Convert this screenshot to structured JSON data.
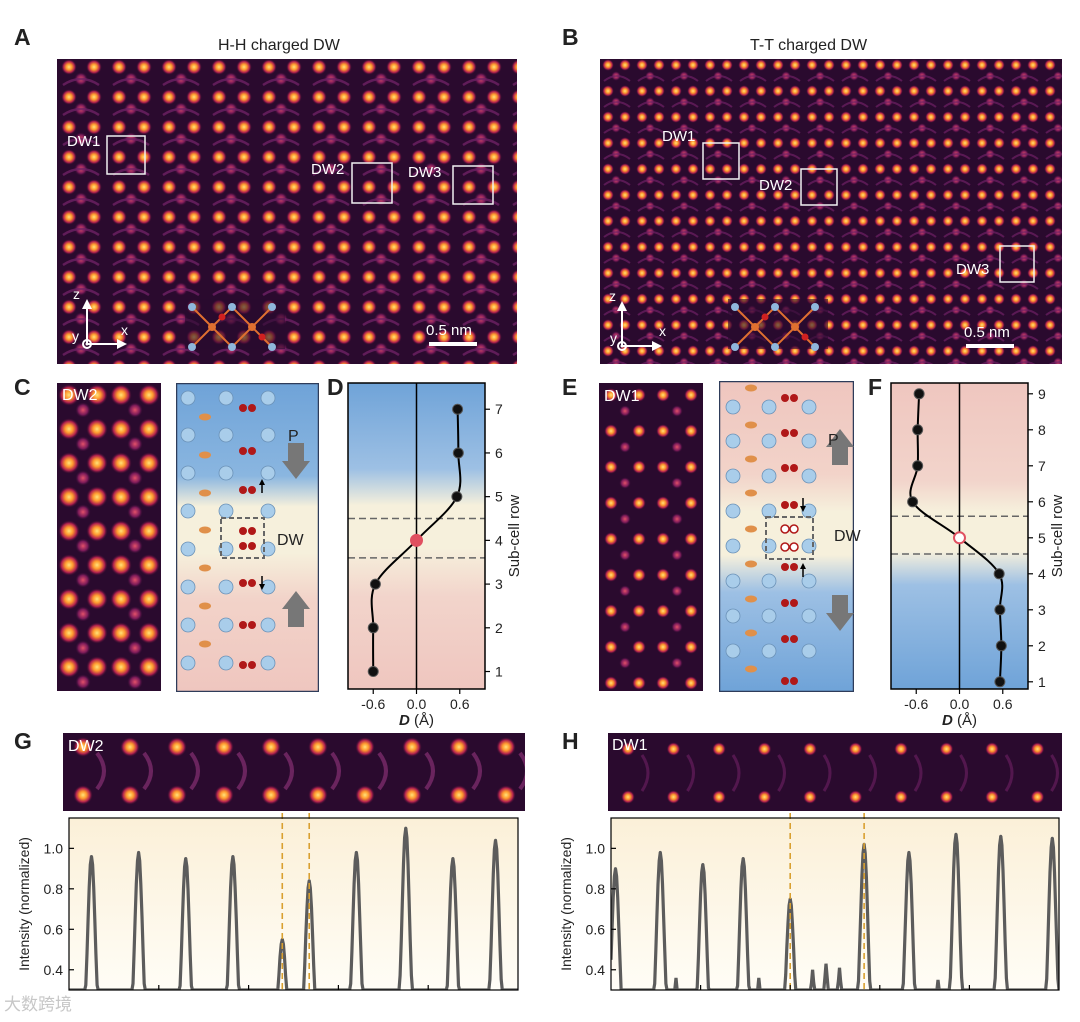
{
  "panels": {
    "A": {
      "label": "A",
      "title": "H-H charged DW",
      "dw_labels": [
        "DW1",
        "DW2",
        "DW3"
      ],
      "scale_bar": "0.5 nm"
    },
    "B": {
      "label": "B",
      "title": "T-T charged DW",
      "dw_labels": [
        "DW1",
        "DW2",
        "DW3"
      ],
      "scale_bar": "0.5 nm"
    },
    "C": {
      "label": "C",
      "image_label": "DW2",
      "p_label": "P",
      "dw_label": "DW"
    },
    "D": {
      "label": "D"
    },
    "E": {
      "label": "E",
      "image_label": "DW1",
      "p_label": "P",
      "dw_label": "DW"
    },
    "F": {
      "label": "F"
    },
    "G": {
      "label": "G",
      "image_label": "DW2"
    },
    "H": {
      "label": "H",
      "image_label": "DW1"
    }
  },
  "axes_labels": {
    "z": "z",
    "y": "y",
    "x": "x"
  },
  "watermark": "大数跨境",
  "colors": {
    "blue_region": "#6fa3d8",
    "pink_region": "#efc6bf",
    "dw_band": "#f6f0dc",
    "curve": "#000000",
    "peak": "#5c5c5c",
    "dash": "#d9a030",
    "center_marker": "#e05060",
    "stem_bg": "#2a0a2e",
    "atom_bright": "#ffb040"
  },
  "chart_data": [
    {
      "id": "D",
      "type": "line",
      "xlabel": "D (Å)",
      "ylabel": "Sub-cell row",
      "x_ticks": [
        "-0.6",
        "0.0",
        "0.6"
      ],
      "y_ticks": [
        "1",
        "2",
        "3",
        "4",
        "5",
        "6",
        "7"
      ],
      "xlim": [
        -0.95,
        0.95
      ],
      "ylim": [
        0.6,
        7.6
      ],
      "points": [
        {
          "x": -0.6,
          "y": 1
        },
        {
          "x": -0.6,
          "y": 2
        },
        {
          "x": -0.57,
          "y": 3
        },
        {
          "x": 0.0,
          "y": 4
        },
        {
          "x": 0.56,
          "y": 5
        },
        {
          "x": 0.58,
          "y": 6
        },
        {
          "x": 0.57,
          "y": 7
        }
      ],
      "center_point": {
        "x": 0.0,
        "y": 4
      },
      "dw_bounds": [
        3.6,
        4.5
      ],
      "regions": {
        "top": "blue",
        "bottom": "pink"
      }
    },
    {
      "id": "F",
      "type": "line",
      "xlabel": "D (Å)",
      "ylabel": "Sub-cell row",
      "x_ticks": [
        "-0.6",
        "0.0",
        "0.6"
      ],
      "y_ticks": [
        "1",
        "2",
        "3",
        "4",
        "5",
        "6",
        "7",
        "8",
        "9"
      ],
      "xlim": [
        -0.95,
        0.95
      ],
      "ylim": [
        0.8,
        9.3
      ],
      "points": [
        {
          "x": 0.56,
          "y": 1
        },
        {
          "x": 0.58,
          "y": 2
        },
        {
          "x": 0.56,
          "y": 3
        },
        {
          "x": 0.55,
          "y": 4
        },
        {
          "x": 0.0,
          "y": 5
        },
        {
          "x": -0.65,
          "y": 6
        },
        {
          "x": -0.58,
          "y": 7
        },
        {
          "x": -0.58,
          "y": 8
        },
        {
          "x": -0.56,
          "y": 9
        }
      ],
      "center_point": {
        "x": 0.0,
        "y": 5
      },
      "dw_bounds": [
        4.55,
        5.6
      ],
      "regions": {
        "top": "pink",
        "bottom": "blue"
      }
    },
    {
      "id": "G",
      "type": "line",
      "ylabel": "Intensity (normalized)",
      "y_ticks": [
        "0.4",
        "0.6",
        "0.8",
        "1.0"
      ],
      "ylim": [
        0.3,
        1.15
      ],
      "xlim": [
        0,
        1
      ],
      "peaks": [
        {
          "x": 0.05,
          "h": 0.96
        },
        {
          "x": 0.155,
          "h": 0.98
        },
        {
          "x": 0.26,
          "h": 0.95
        },
        {
          "x": 0.365,
          "h": 0.96
        },
        {
          "x": 0.475,
          "h": 0.55
        },
        {
          "x": 0.535,
          "h": 0.84
        },
        {
          "x": 0.64,
          "h": 0.98
        },
        {
          "x": 0.75,
          "h": 1.1
        },
        {
          "x": 0.855,
          "h": 0.95
        },
        {
          "x": 0.95,
          "h": 1.04
        }
      ],
      "markers_x": [
        0.475,
        0.535
      ]
    },
    {
      "id": "H",
      "type": "line",
      "ylabel": "Intensity (normalized)",
      "y_ticks": [
        "0.4",
        "0.6",
        "0.8",
        "1.0"
      ],
      "ylim": [
        0.3,
        1.15
      ],
      "xlim": [
        0,
        1
      ],
      "peaks": [
        {
          "x": 0.01,
          "h": 0.9
        },
        {
          "x": 0.11,
          "h": 0.98
        },
        {
          "x": 0.205,
          "h": 0.92
        },
        {
          "x": 0.295,
          "h": 0.95
        },
        {
          "x": 0.4,
          "h": 0.75
        },
        {
          "x": 0.565,
          "h": 1.02
        },
        {
          "x": 0.665,
          "h": 0.98
        },
        {
          "x": 0.77,
          "h": 1.07
        },
        {
          "x": 0.87,
          "h": 1.06
        },
        {
          "x": 0.985,
          "h": 1.05
        }
      ],
      "small_bumps": [
        {
          "x": 0.145,
          "h": 0.36
        },
        {
          "x": 0.33,
          "h": 0.36
        },
        {
          "x": 0.45,
          "h": 0.4
        },
        {
          "x": 0.48,
          "h": 0.43
        },
        {
          "x": 0.51,
          "h": 0.41
        },
        {
          "x": 0.73,
          "h": 0.35
        }
      ],
      "markers_x": [
        0.4,
        0.565
      ]
    }
  ]
}
